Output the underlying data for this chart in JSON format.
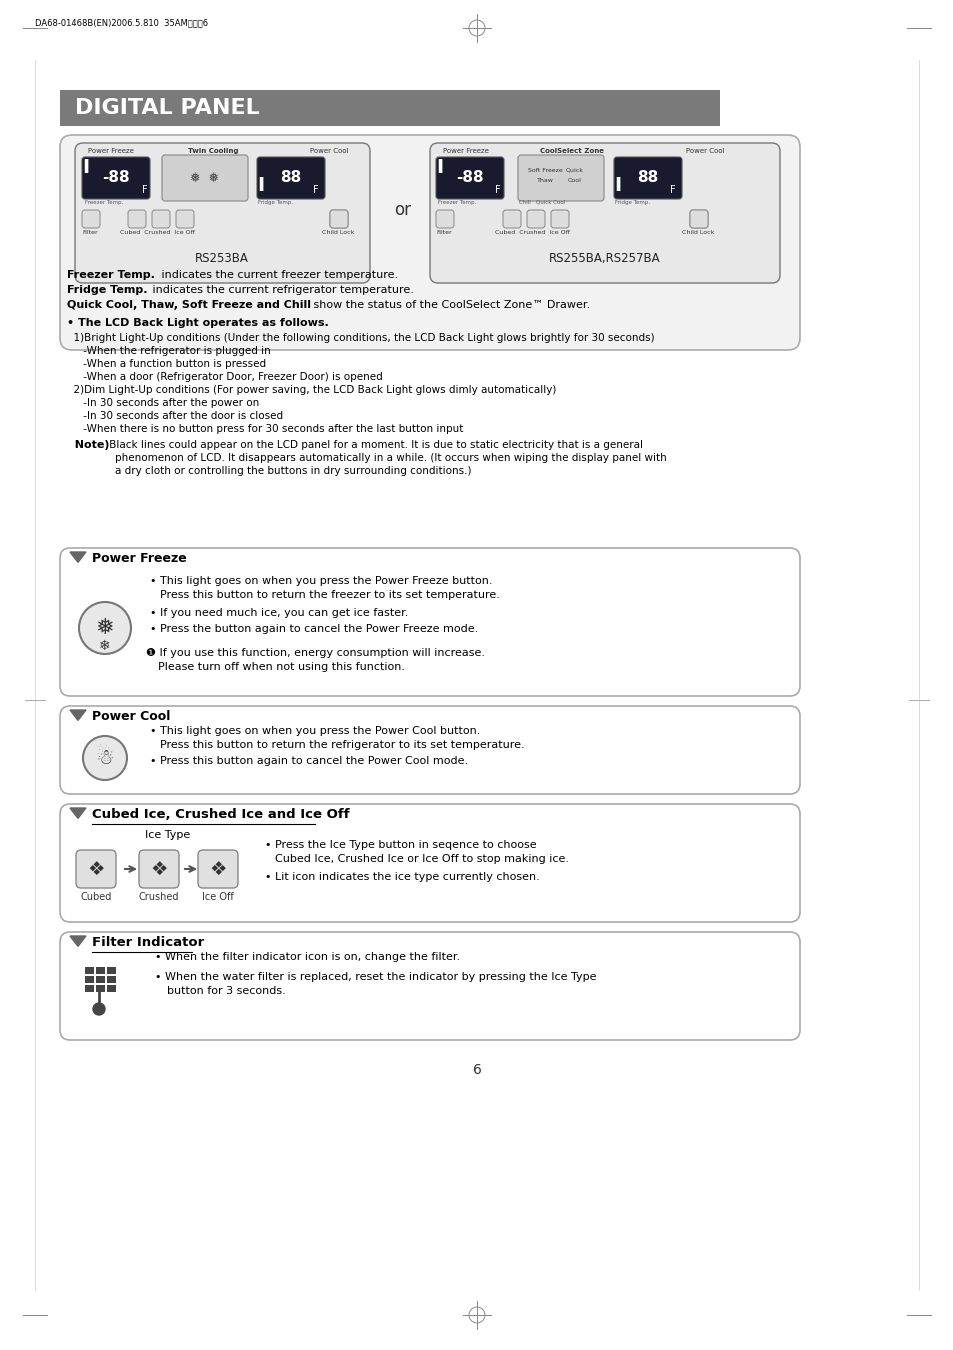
{
  "bg_color": "#ffffff",
  "header_bg": "#7a7a7a",
  "header_text": "DIGITAL PANEL",
  "header_text_color": "#ffffff",
  "header_font_size": 16,
  "page_number": "6",
  "model_left": "RS253BA",
  "model_right": "RS255BA,RS257BA",
  "or_text": "or",
  "section_power_freeze_title": "Power Freeze",
  "section_power_cool_title": "Power Cool",
  "section_ice_title": "Cubed Ice, Crushed Ice and Ice Off",
  "section_filter_title": "Filter Indicator",
  "ice_type_label": "Ice Type",
  "ice_labels": [
    "Cubed",
    "Crushed",
    "Ice Off"
  ]
}
